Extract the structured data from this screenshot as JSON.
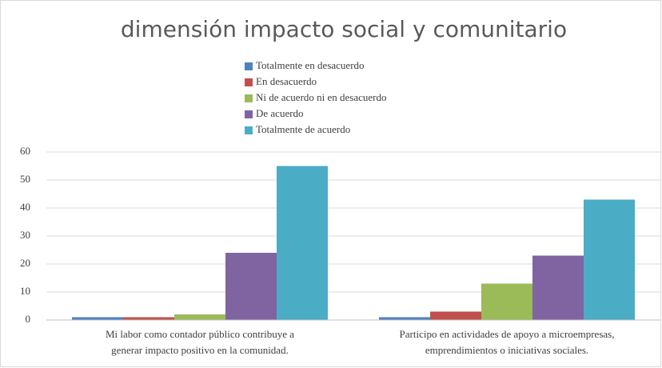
{
  "chart_data": {
    "type": "bar",
    "title": "dimensión impacto social y comunitario",
    "categories": [
      [
        "Mi labor como contador público contribuye a",
        "generar impacto positivo en la comunidad."
      ],
      [
        "Participo en actividades de apoyo a microempresas,",
        "emprendimientos o iniciativas sociales."
      ]
    ],
    "series": [
      {
        "name": "Totalmente en desacuerdo",
        "color": "#4f81bd",
        "values": [
          1,
          1
        ]
      },
      {
        "name": "En desacuerdo",
        "color": "#c0504d",
        "values": [
          1,
          3
        ]
      },
      {
        "name": "Ni de acuerdo ni en desacuerdo",
        "color": "#9bbb59",
        "values": [
          2,
          13
        ]
      },
      {
        "name": "De acuerdo",
        "color": "#8064a2",
        "values": [
          24,
          23
        ]
      },
      {
        "name": "Totalmente de acuerdo",
        "color": "#4bacc6",
        "values": [
          55,
          43
        ]
      }
    ],
    "ylim": [
      0,
      60
    ],
    "yticks": [
      0,
      10,
      20,
      30,
      40,
      50,
      60
    ],
    "grid": true,
    "legend": "top"
  }
}
